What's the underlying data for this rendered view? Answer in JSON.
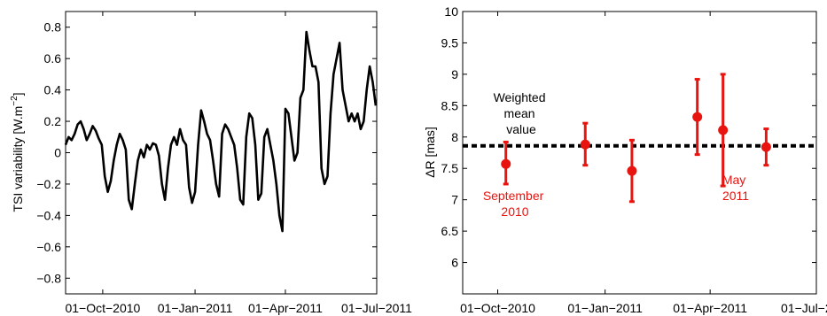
{
  "colors": {
    "line": "#000000",
    "points": "#e8140f",
    "mean": "#000000",
    "axes": "#000000"
  },
  "chart_data": [
    {
      "type": "line",
      "xlabel": "",
      "ylabel": "TSI variability [W.m",
      "ylabel_sup": "−2",
      "ylabel_suffix": "]",
      "xlim": [
        "2010-08-25",
        "2011-07-01"
      ],
      "ylim": [
        -0.9,
        0.9
      ],
      "yticks": [
        -0.8,
        -0.6,
        -0.4,
        -0.2,
        0,
        0.2,
        0.4,
        0.6,
        0.8
      ],
      "ytick_labels": [
        "−0.8",
        "−0.6",
        "−0.4",
        "−0.2",
        "0",
        "0.2",
        "0.4",
        "0.6",
        "0.8"
      ],
      "xticks": [
        "2010-10-01",
        "2011-01-01",
        "2011-04-01",
        "2011-07-01"
      ],
      "xtick_labels": [
        "01−Oct−2010",
        "01−Jan−2011",
        "01−Apr−2011",
        "01−Jul−2011"
      ],
      "series": [
        {
          "x": [
            "2010-08-25",
            "2010-08-28",
            "2010-08-31",
            "2010-09-03",
            "2010-09-06",
            "2010-09-09",
            "2010-09-12",
            "2010-09-15",
            "2010-09-18",
            "2010-09-21",
            "2010-09-24",
            "2010-09-27",
            "2010-09-30",
            "2010-10-03",
            "2010-10-06",
            "2010-10-09",
            "2010-10-12",
            "2010-10-15",
            "2010-10-18",
            "2010-10-21",
            "2010-10-24",
            "2010-10-27",
            "2010-10-30",
            "2010-11-02",
            "2010-11-05",
            "2010-11-08",
            "2010-11-11",
            "2010-11-14",
            "2010-11-17",
            "2010-11-20",
            "2010-11-23",
            "2010-11-26",
            "2010-11-29",
            "2010-12-02",
            "2010-12-05",
            "2010-12-08",
            "2010-12-11",
            "2010-12-14",
            "2010-12-17",
            "2010-12-20",
            "2010-12-23",
            "2010-12-26",
            "2010-12-29",
            "2011-01-01",
            "2011-01-04",
            "2011-01-07",
            "2011-01-10",
            "2011-01-13",
            "2011-01-16",
            "2011-01-19",
            "2011-01-22",
            "2011-01-25",
            "2011-01-28",
            "2011-01-31",
            "2011-02-03",
            "2011-02-06",
            "2011-02-09",
            "2011-02-12",
            "2011-02-15",
            "2011-02-18",
            "2011-02-21",
            "2011-02-24",
            "2011-02-27",
            "2011-03-02",
            "2011-03-05",
            "2011-03-08",
            "2011-03-11",
            "2011-03-14",
            "2011-03-17",
            "2011-03-20",
            "2011-03-23",
            "2011-03-26",
            "2011-03-29",
            "2011-04-01",
            "2011-04-04",
            "2011-04-07",
            "2011-04-10",
            "2011-04-13",
            "2011-04-16",
            "2011-04-19",
            "2011-04-22",
            "2011-04-25",
            "2011-04-28",
            "2011-05-01",
            "2011-05-04",
            "2011-05-07",
            "2011-05-10",
            "2011-05-13",
            "2011-05-16",
            "2011-05-19",
            "2011-05-22",
            "2011-05-25",
            "2011-05-28",
            "2011-05-31",
            "2011-06-03",
            "2011-06-06",
            "2011-06-09",
            "2011-06-12",
            "2011-06-15",
            "2011-06-18",
            "2011-06-21",
            "2011-06-24",
            "2011-06-27",
            "2011-06-30"
          ],
          "y": [
            0.05,
            0.1,
            0.08,
            0.12,
            0.18,
            0.2,
            0.15,
            0.08,
            0.12,
            0.17,
            0.14,
            0.09,
            0.05,
            -0.15,
            -0.25,
            -0.18,
            -0.05,
            0.05,
            0.12,
            0.08,
            0.02,
            -0.3,
            -0.36,
            -0.2,
            -0.05,
            0.02,
            -0.03,
            0.05,
            0.02,
            0.06,
            0.05,
            -0.02,
            -0.2,
            -0.3,
            -0.1,
            0.05,
            0.1,
            0.05,
            0.15,
            0.08,
            0.05,
            -0.22,
            -0.32,
            -0.25,
            0.05,
            0.27,
            0.2,
            0.12,
            0.08,
            -0.05,
            -0.2,
            -0.28,
            0.12,
            0.18,
            0.15,
            0.1,
            0.05,
            -0.1,
            -0.3,
            -0.33,
            0.1,
            0.25,
            0.22,
            0.05,
            -0.3,
            -0.26,
            0.1,
            0.15,
            0.05,
            -0.05,
            -0.2,
            -0.4,
            -0.5,
            0.28,
            0.25,
            0.1,
            -0.05,
            0.0,
            0.35,
            0.4,
            0.77,
            0.65,
            0.55,
            0.55,
            0.45,
            -0.1,
            -0.2,
            -0.15,
            0.25,
            0.5,
            0.6,
            0.7,
            0.4,
            0.3,
            0.2,
            0.25,
            0.2,
            0.25,
            0.15,
            0.2,
            0.4,
            0.55,
            0.45,
            0.3
          ]
        }
      ]
    },
    {
      "type": "scatter",
      "xlabel": "",
      "ylabel": "ΔR [mas]",
      "xlim": [
        "2010-09-01",
        "2011-07-01"
      ],
      "ylim": [
        5.5,
        10
      ],
      "yticks": [
        6,
        6.5,
        7,
        7.5,
        8,
        8.5,
        9,
        9.5,
        10
      ],
      "ytick_labels": [
        "6",
        "6.5",
        "7",
        "7.5",
        "8",
        "8.5",
        "9",
        "9.5",
        "10"
      ],
      "xticks": [
        "2010-10-01",
        "2011-01-01",
        "2011-04-01",
        "2011-07-01"
      ],
      "xtick_labels": [
        "01−Oct−2010",
        "01−Jan−2011",
        "01−Apr−2011",
        "01−Jul−2011"
      ],
      "points": [
        {
          "x": "2010-10-08",
          "y": 7.57,
          "err_lo": 7.25,
          "err_hi": 7.92
        },
        {
          "x": "2010-12-15",
          "y": 7.88,
          "err_lo": 7.55,
          "err_hi": 8.22
        },
        {
          "x": "2011-01-24",
          "y": 7.46,
          "err_lo": 6.97,
          "err_hi": 7.95
        },
        {
          "x": "2011-03-21",
          "y": 8.32,
          "err_lo": 7.72,
          "err_hi": 8.92
        },
        {
          "x": "2011-04-12",
          "y": 8.11,
          "err_lo": 7.22,
          "err_hi": 9.0
        },
        {
          "x": "2011-05-19",
          "y": 7.84,
          "err_lo": 7.55,
          "err_hi": 8.13
        }
      ],
      "weighted_mean": 7.86,
      "annotations": {
        "mean_label": [
          "Weighted",
          "mean",
          "value"
        ],
        "sep_label": [
          "September",
          "2010"
        ],
        "may_label": [
          "May",
          "2011"
        ]
      }
    }
  ]
}
